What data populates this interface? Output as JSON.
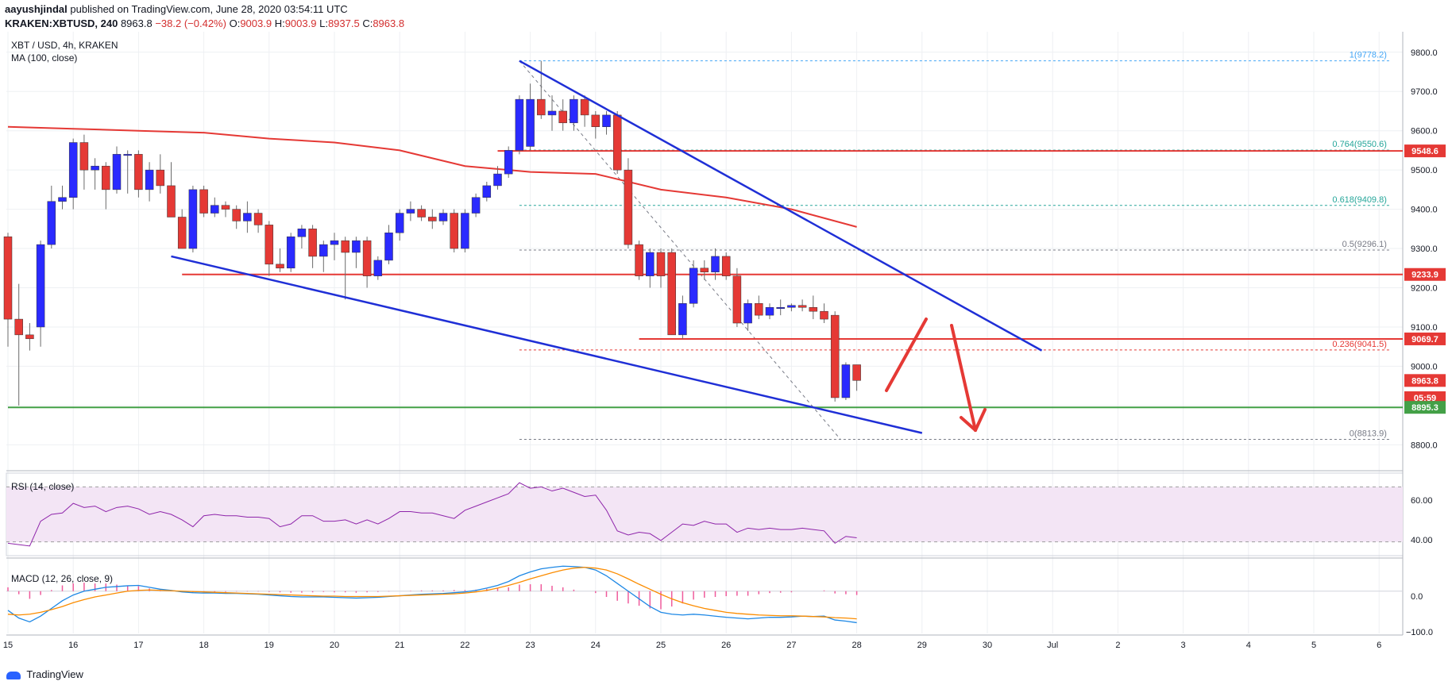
{
  "header": {
    "author": "aayushjindal",
    "published": "published on TradingView.com, June 28, 2020 03:54:11 UTC",
    "symbol": "KRAKEN:XBTUSD, 240",
    "last": "8963.8",
    "change": "−38.2 (−0.42%)",
    "ohlc": {
      "O": "9003.9",
      "H": "9003.9",
      "L": "8937.5",
      "C": "8963.8"
    },
    "ohlc_labels": {
      "O": "O:",
      "H": "H:",
      "L": "L:",
      "C": "C:"
    }
  },
  "main_panel": {
    "title": "XBT / USD, 4h, KRAKEN",
    "indicator": "MA (100, close)",
    "price_labels": [
      {
        "text": "9548.6",
        "value": 9548.6,
        "color": "#e53935"
      },
      {
        "text": "9233.9",
        "value": 9233.9,
        "color": "#e53935"
      },
      {
        "text": "9069.7",
        "value": 9069.7,
        "color": "#e53935"
      },
      {
        "text": "8963.8",
        "value": 8963.8,
        "color": "#e53935"
      },
      {
        "text": "05:59",
        "value": 8920,
        "color": "#e53935"
      },
      {
        "text": "8895.3",
        "value": 8895.3,
        "color": "#43a047"
      }
    ]
  },
  "rsi_panel": {
    "title": "RSI (14, close)",
    "ticks": [
      "60.00",
      "40.00"
    ]
  },
  "macd_panel": {
    "title": "MACD (12, 26, close, 9)",
    "ticks": [
      "0.0",
      "−100.0"
    ]
  },
  "footer": {
    "brand": "TradingView"
  },
  "chart_data": {
    "type": "candlestick",
    "title": "XBT / USD, 4h, KRAKEN",
    "ylim": [
      8740,
      9840
    ],
    "x_ticks": [
      {
        "label": "15",
        "t": 0
      },
      {
        "label": "16",
        "t": 6
      },
      {
        "label": "17",
        "t": 12
      },
      {
        "label": "18",
        "t": 18
      },
      {
        "label": "19",
        "t": 24
      },
      {
        "label": "20",
        "t": 30
      },
      {
        "label": "21",
        "t": 36
      },
      {
        "label": "22",
        "t": 42
      },
      {
        "label": "23",
        "t": 48
      },
      {
        "label": "24",
        "t": 54
      },
      {
        "label": "25",
        "t": 60
      },
      {
        "label": "26",
        "t": 66
      },
      {
        "label": "27",
        "t": 72
      },
      {
        "label": "28",
        "t": 78
      },
      {
        "label": "29",
        "t": 84
      },
      {
        "label": "30",
        "t": 90
      },
      {
        "label": "Jul",
        "t": 96
      },
      {
        "label": "2",
        "t": 102
      },
      {
        "label": "3",
        "t": 108
      },
      {
        "label": "4",
        "t": 114
      },
      {
        "label": "5",
        "t": 120
      },
      {
        "label": "6",
        "t": 126
      }
    ],
    "y_ticks": [
      9800,
      9700,
      9600,
      9500,
      9400,
      9300,
      9200,
      9100,
      9000,
      8900,
      8800
    ],
    "candles": [
      [
        9330,
        9340,
        9050,
        9120
      ],
      [
        9120,
        9210,
        8900,
        9080
      ],
      [
        9080,
        9110,
        9040,
        9070
      ],
      [
        9100,
        9320,
        9050,
        9310
      ],
      [
        9310,
        9460,
        9300,
        9420
      ],
      [
        9420,
        9460,
        9400,
        9430
      ],
      [
        9430,
        9580,
        9400,
        9570
      ],
      [
        9570,
        9590,
        9450,
        9500
      ],
      [
        9500,
        9530,
        9450,
        9510
      ],
      [
        9510,
        9520,
        9400,
        9450
      ],
      [
        9450,
        9560,
        9440,
        9540
      ],
      [
        9540,
        9550,
        9440,
        9540
      ],
      [
        9540,
        9550,
        9430,
        9450
      ],
      [
        9450,
        9520,
        9420,
        9500
      ],
      [
        9500,
        9540,
        9440,
        9460
      ],
      [
        9460,
        9520,
        9380,
        9380
      ],
      [
        9380,
        9400,
        9300,
        9300
      ],
      [
        9300,
        9460,
        9290,
        9450
      ],
      [
        9450,
        9460,
        9380,
        9390
      ],
      [
        9390,
        9430,
        9380,
        9410
      ],
      [
        9410,
        9420,
        9380,
        9400
      ],
      [
        9400,
        9410,
        9350,
        9370
      ],
      [
        9370,
        9420,
        9340,
        9390
      ],
      [
        9390,
        9400,
        9340,
        9360
      ],
      [
        9360,
        9370,
        9230,
        9260
      ],
      [
        9260,
        9300,
        9240,
        9250
      ],
      [
        9250,
        9340,
        9240,
        9330
      ],
      [
        9330,
        9360,
        9300,
        9350
      ],
      [
        9350,
        9360,
        9250,
        9280
      ],
      [
        9280,
        9320,
        9240,
        9310
      ],
      [
        9310,
        9340,
        9270,
        9320
      ],
      [
        9320,
        9330,
        9170,
        9290
      ],
      [
        9290,
        9330,
        9250,
        9320
      ],
      [
        9320,
        9330,
        9200,
        9230
      ],
      [
        9230,
        9280,
        9220,
        9270
      ],
      [
        9270,
        9360,
        9260,
        9340
      ],
      [
        9340,
        9400,
        9320,
        9390
      ],
      [
        9390,
        9420,
        9370,
        9400
      ],
      [
        9400,
        9410,
        9370,
        9380
      ],
      [
        9380,
        9400,
        9350,
        9370
      ],
      [
        9370,
        9400,
        9360,
        9390
      ],
      [
        9390,
        9400,
        9290,
        9300
      ],
      [
        9300,
        9400,
        9290,
        9390
      ],
      [
        9390,
        9440,
        9380,
        9430
      ],
      [
        9430,
        9470,
        9420,
        9460
      ],
      [
        9460,
        9510,
        9450,
        9490
      ],
      [
        9490,
        9560,
        9480,
        9550
      ],
      [
        9550,
        9690,
        9540,
        9680
      ],
      [
        9560,
        9720,
        9550,
        9680
      ],
      [
        9680,
        9778,
        9630,
        9640
      ],
      [
        9640,
        9690,
        9600,
        9650
      ],
      [
        9650,
        9680,
        9600,
        9620
      ],
      [
        9620,
        9690,
        9600,
        9680
      ],
      [
        9680,
        9690,
        9610,
        9640
      ],
      [
        9640,
        9650,
        9580,
        9610
      ],
      [
        9610,
        9650,
        9590,
        9640
      ],
      [
        9640,
        9650,
        9490,
        9500
      ],
      [
        9500,
        9530,
        9300,
        9310
      ],
      [
        9310,
        9320,
        9220,
        9230
      ],
      [
        9230,
        9300,
        9200,
        9290
      ],
      [
        9290,
        9300,
        9200,
        9230
      ],
      [
        9290,
        9300,
        9080,
        9080
      ],
      [
        9080,
        9180,
        9070,
        9160
      ],
      [
        9160,
        9270,
        9150,
        9250
      ],
      [
        9250,
        9270,
        9220,
        9240
      ],
      [
        9240,
        9300,
        9220,
        9280
      ],
      [
        9280,
        9290,
        9220,
        9230
      ],
      [
        9230,
        9250,
        9100,
        9110
      ],
      [
        9110,
        9170,
        9090,
        9160
      ],
      [
        9160,
        9180,
        9120,
        9130
      ],
      [
        9130,
        9160,
        9120,
        9150
      ],
      [
        9150,
        9170,
        9130,
        9150
      ],
      [
        9150,
        9160,
        9140,
        9155
      ],
      [
        9155,
        9170,
        9140,
        9150
      ],
      [
        9150,
        9180,
        9120,
        9140
      ],
      [
        9140,
        9160,
        9110,
        9120
      ],
      [
        9130,
        9140,
        8910,
        8920
      ],
      [
        8920,
        9010,
        8913.9,
        9003.9
      ],
      [
        9003.9,
        9003.9,
        8937.5,
        8963.8
      ]
    ],
    "ma100": [
      [
        0,
        9610
      ],
      [
        6,
        9605
      ],
      [
        12,
        9600
      ],
      [
        18,
        9595
      ],
      [
        24,
        9580
      ],
      [
        30,
        9570
      ],
      [
        36,
        9550
      ],
      [
        42,
        9510
      ],
      [
        48,
        9495
      ],
      [
        54,
        9490
      ],
      [
        60,
        9450
      ],
      [
        66,
        9430
      ],
      [
        72,
        9400
      ],
      [
        78,
        9355
      ]
    ],
    "horizontal_levels": [
      {
        "price": 9548.6,
        "t_start": 45,
        "color": "#e53935"
      },
      {
        "price": 9233.9,
        "t_start": 16,
        "color": "#e53935"
      },
      {
        "price": 9069.7,
        "t_start": 58,
        "color": "#e53935"
      },
      {
        "price": 8895.3,
        "t_start": 0,
        "color": "#43a047"
      }
    ],
    "trend_lines": [
      {
        "from": [
          47,
          9778
        ],
        "to": [
          95,
          9040
        ]
      },
      {
        "from": [
          15,
          9280
        ],
        "to": [
          84,
          8830
        ]
      }
    ],
    "fib_levels": [
      {
        "label": "1(9778.2)",
        "price": 9778.2,
        "color": "#42a5f5"
      },
      {
        "label": "0.764(9550.6)",
        "price": 9550.6,
        "color": "#26a69a"
      },
      {
        "label": "0.618(9409.8)",
        "price": 9409.8,
        "color": "#26a69a"
      },
      {
        "label": "0.5(9296.1)",
        "price": 9296.1,
        "color": "#787b86"
      },
      {
        "label": "0.236(9041.5)",
        "price": 9041.5,
        "color": "#e53935"
      },
      {
        "label": "0(8813.9)",
        "price": 8813.9,
        "color": "#787b86"
      }
    ],
    "fib_t_start": 47,
    "fib_t_end": 127,
    "rsi": {
      "ylim": [
        20,
        80
      ],
      "levels": [
        70,
        30
      ],
      "values": [
        29,
        28,
        27,
        45,
        50,
        51,
        58,
        55,
        56,
        52,
        55,
        56,
        54,
        50,
        52,
        50,
        46,
        41,
        49,
        50,
        49,
        49,
        48,
        48,
        47,
        41,
        43,
        49,
        49,
        45,
        45,
        46,
        43,
        46,
        43,
        47,
        52,
        52,
        51,
        51,
        49,
        47,
        53,
        56,
        59,
        62,
        65,
        73,
        69,
        70,
        67,
        69,
        66,
        63,
        64,
        53,
        38,
        35,
        37,
        36,
        31,
        37,
        43,
        42,
        45,
        43,
        43,
        37,
        40,
        39,
        40,
        39,
        39,
        40,
        39,
        38,
        29,
        34,
        33
      ]
    },
    "macd": {
      "ylim": [
        -110,
        80
      ],
      "macd": [
        -50,
        -70,
        -80,
        -65,
        -45,
        -25,
        -10,
        0,
        5,
        10,
        12,
        14,
        15,
        10,
        5,
        2,
        -2,
        -4,
        -5,
        -5,
        -6,
        -6,
        -7,
        -8,
        -10,
        -12,
        -14,
        -15,
        -15,
        -15,
        -16,
        -17,
        -18,
        -17,
        -16,
        -14,
        -12,
        -10,
        -8,
        -7,
        -6,
        -4,
        -2,
        2,
        8,
        15,
        25,
        40,
        50,
        58,
        62,
        65,
        64,
        62,
        55,
        40,
        20,
        0,
        -20,
        -40,
        -55,
        -60,
        -62,
        -60,
        -62,
        -65,
        -68,
        -70,
        -72,
        -70,
        -68,
        -68,
        -67,
        -65,
        -66,
        -65,
        -75,
        -78,
        -82
      ],
      "signal": [
        -60,
        -62,
        -60,
        -55,
        -48,
        -40,
        -30,
        -22,
        -15,
        -10,
        -5,
        0,
        2,
        3,
        2,
        1,
        0,
        -1,
        -2,
        -3,
        -4,
        -5,
        -6,
        -7,
        -8,
        -9,
        -10,
        -11,
        -12,
        -13,
        -13,
        -14,
        -14,
        -14,
        -14,
        -13,
        -12,
        -11,
        -10,
        -9,
        -8,
        -7,
        -5,
        -2,
        2,
        8,
        15,
        23,
        32,
        40,
        48,
        55,
        60,
        62,
        60,
        55,
        45,
        32,
        18,
        5,
        -8,
        -20,
        -30,
        -38,
        -45,
        -50,
        -55,
        -58,
        -60,
        -62,
        -63,
        -64,
        -64,
        -65,
        -66,
        -67,
        -69,
        -70,
        -72
      ]
    }
  }
}
